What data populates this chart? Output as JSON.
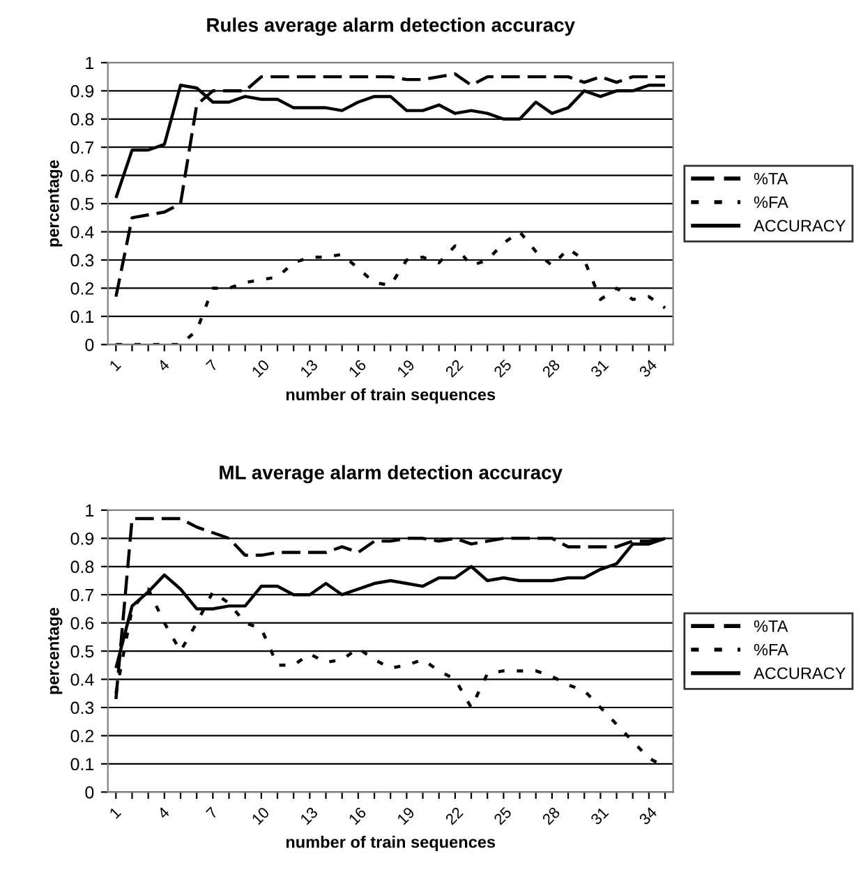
{
  "chart_data": [
    {
      "type": "line",
      "title": "Rules average alarm detection accuracy",
      "xlabel": "number of train sequences",
      "ylabel": "percentage",
      "categories": [
        "1",
        null,
        null,
        "4",
        null,
        null,
        "7",
        null,
        null,
        "10",
        null,
        null,
        "13",
        null,
        null,
        "16",
        null,
        null,
        "19",
        null,
        null,
        "22",
        null,
        null,
        "25",
        null,
        null,
        "28",
        null,
        null,
        "31",
        null,
        null,
        "34",
        null
      ],
      "ylim": [
        0,
        1
      ],
      "yticks": [
        0,
        0.1,
        0.2,
        0.3,
        0.4,
        0.5,
        0.6,
        0.7,
        0.8,
        0.9,
        1
      ],
      "grid": "y",
      "legend": "right",
      "series": [
        {
          "name": "%TA",
          "color": "#000000",
          "line_style": "dashed",
          "values": [
            0.17,
            0.45,
            0.46,
            0.47,
            0.5,
            0.85,
            0.9,
            0.9,
            0.9,
            0.95,
            0.95,
            0.95,
            0.95,
            0.95,
            0.95,
            0.95,
            0.95,
            0.95,
            0.94,
            0.94,
            0.95,
            0.96,
            0.92,
            0.95,
            0.95,
            0.95,
            0.95,
            0.95,
            0.95,
            0.93,
            0.95,
            0.93,
            0.95,
            0.95,
            0.95
          ]
        },
        {
          "name": "%FA",
          "color": "#000000",
          "line_style": "dotted",
          "values": [
            0,
            0,
            0,
            0,
            0,
            0.05,
            0.2,
            0.2,
            0.22,
            0.23,
            0.24,
            0.29,
            0.31,
            0.31,
            0.32,
            0.27,
            0.22,
            0.21,
            0.3,
            0.31,
            0.29,
            0.35,
            0.28,
            0.3,
            0.36,
            0.4,
            0.33,
            0.28,
            0.34,
            0.3,
            0.16,
            0.2,
            0.16,
            0.17,
            0.13
          ]
        },
        {
          "name": "ACCURACY",
          "color": "#000000",
          "line_style": "solid",
          "values": [
            0.52,
            0.69,
            0.69,
            0.71,
            0.92,
            0.91,
            0.86,
            0.86,
            0.88,
            0.87,
            0.87,
            0.84,
            0.84,
            0.84,
            0.83,
            0.86,
            0.88,
            0.88,
            0.83,
            0.83,
            0.85,
            0.82,
            0.83,
            0.82,
            0.8,
            0.8,
            0.86,
            0.82,
            0.84,
            0.9,
            0.88,
            0.9,
            0.9,
            0.92,
            0.92
          ]
        }
      ]
    },
    {
      "type": "line",
      "title": "ML average alarm detection accuracy",
      "xlabel": "number of train sequences",
      "ylabel": "percentage",
      "categories": [
        "1",
        null,
        null,
        "4",
        null,
        null,
        "7",
        null,
        null,
        "10",
        null,
        null,
        "13",
        null,
        null,
        "16",
        null,
        null,
        "19",
        null,
        null,
        "22",
        null,
        null,
        "25",
        null,
        null,
        "28",
        null,
        null,
        "31",
        null,
        null,
        "34",
        null
      ],
      "ylim": [
        0,
        1
      ],
      "yticks": [
        0,
        0.1,
        0.2,
        0.3,
        0.4,
        0.5,
        0.6,
        0.7,
        0.8,
        0.9,
        1
      ],
      "grid": "y",
      "legend": "right",
      "series": [
        {
          "name": "%TA",
          "color": "#000000",
          "line_style": "dashed",
          "values": [
            0.33,
            0.97,
            0.97,
            0.97,
            0.97,
            0.94,
            0.92,
            0.9,
            0.84,
            0.84,
            0.85,
            0.85,
            0.85,
            0.85,
            0.87,
            0.85,
            0.89,
            0.89,
            0.9,
            0.9,
            0.89,
            0.9,
            0.88,
            0.89,
            0.9,
            0.9,
            0.9,
            0.9,
            0.87,
            0.87,
            0.87,
            0.87,
            0.89,
            0.89,
            0.9
          ]
        },
        {
          "name": "%FA",
          "color": "#000000",
          "line_style": "dotted",
          "values": [
            0.35,
            0.65,
            0.72,
            0.6,
            0.5,
            0.6,
            0.71,
            0.67,
            0.6,
            0.58,
            0.45,
            0.45,
            0.49,
            0.46,
            0.47,
            0.51,
            0.47,
            0.44,
            0.45,
            0.47,
            0.43,
            0.4,
            0.3,
            0.42,
            0.43,
            0.43,
            0.43,
            0.41,
            0.38,
            0.36,
            0.3,
            0.24,
            0.18,
            0.12,
            0.09
          ]
        },
        {
          "name": "ACCURACY",
          "color": "#000000",
          "line_style": "solid",
          "values": [
            0.44,
            0.66,
            0.71,
            0.77,
            0.72,
            0.65,
            0.65,
            0.66,
            0.66,
            0.73,
            0.73,
            0.7,
            0.7,
            0.74,
            0.7,
            0.72,
            0.74,
            0.75,
            0.74,
            0.73,
            0.76,
            0.76,
            0.8,
            0.75,
            0.76,
            0.75,
            0.75,
            0.75,
            0.76,
            0.76,
            0.79,
            0.81,
            0.88,
            0.88,
            0.9
          ]
        }
      ]
    }
  ]
}
